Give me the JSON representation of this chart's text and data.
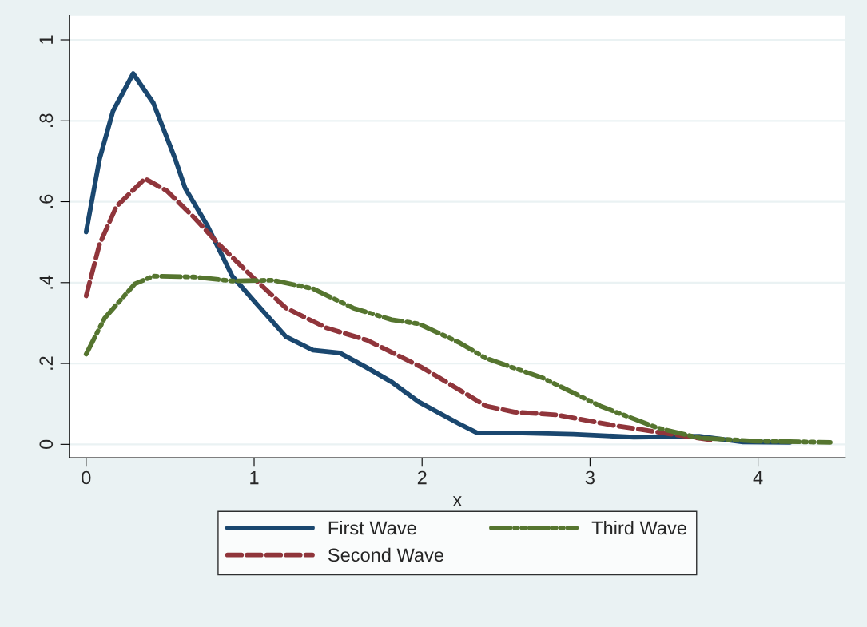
{
  "chart_data": {
    "type": "line",
    "xlabel": "x",
    "xlim": [
      -0.1,
      4.52
    ],
    "xticks": [
      0,
      1,
      2,
      3,
      4
    ],
    "ylim": [
      -0.033,
      1.06
    ],
    "yticks": [
      0,
      {
        "value": 0.2,
        "label": ".2"
      },
      {
        "value": 0.4,
        "label": ".4"
      },
      {
        "value": 0.6,
        "label": ".6"
      },
      {
        "value": 0.8,
        "label": ".8"
      },
      1
    ],
    "grid": "y",
    "legend": "bottom",
    "series": [
      {
        "name": "First Wave",
        "color": "#1a476f",
        "line_style": "solid",
        "x": [
          0,
          0.08,
          0.16,
          0.28,
          0.4,
          0.53,
          0.59,
          0.72,
          0.87,
          1.02,
          1.19,
          1.35,
          1.51,
          1.67,
          1.82,
          1.98,
          2.22,
          2.33,
          2.6,
          2.9,
          3.26,
          3.65,
          3.91,
          4.19
        ],
        "values": [
          0.525,
          0.706,
          0.824,
          0.917,
          0.844,
          0.706,
          0.633,
          0.542,
          0.416,
          0.345,
          0.266,
          0.233,
          0.226,
          0.19,
          0.154,
          0.105,
          0.051,
          0.028,
          0.028,
          0.025,
          0.018,
          0.02,
          0.006,
          0.005
        ]
      },
      {
        "name": "Second Wave",
        "color": "#90353b",
        "line_style": "dashed",
        "x": [
          0,
          0.08,
          0.18,
          0.35,
          0.48,
          0.64,
          0.79,
          1.0,
          1.19,
          1.43,
          1.67,
          1.87,
          2.0,
          2.25,
          2.38,
          2.55,
          2.8,
          3.14,
          3.57,
          3.74
        ],
        "values": [
          0.367,
          0.495,
          0.588,
          0.657,
          0.627,
          0.562,
          0.495,
          0.41,
          0.337,
          0.288,
          0.258,
          0.217,
          0.19,
          0.128,
          0.095,
          0.08,
          0.073,
          0.047,
          0.02,
          0.01
        ]
      },
      {
        "name": "Third Wave",
        "color": "#55752f",
        "line_style": "dashdot",
        "x": [
          0,
          0.11,
          0.29,
          0.4,
          0.64,
          0.87,
          1.11,
          1.35,
          1.59,
          1.82,
          1.98,
          2.22,
          2.38,
          2.72,
          3.06,
          3.4,
          3.65,
          3.99,
          4.43
        ],
        "values": [
          0.223,
          0.312,
          0.397,
          0.416,
          0.414,
          0.404,
          0.406,
          0.385,
          0.337,
          0.308,
          0.298,
          0.252,
          0.213,
          0.164,
          0.095,
          0.041,
          0.016,
          0.008,
          0.005
        ]
      }
    ]
  }
}
